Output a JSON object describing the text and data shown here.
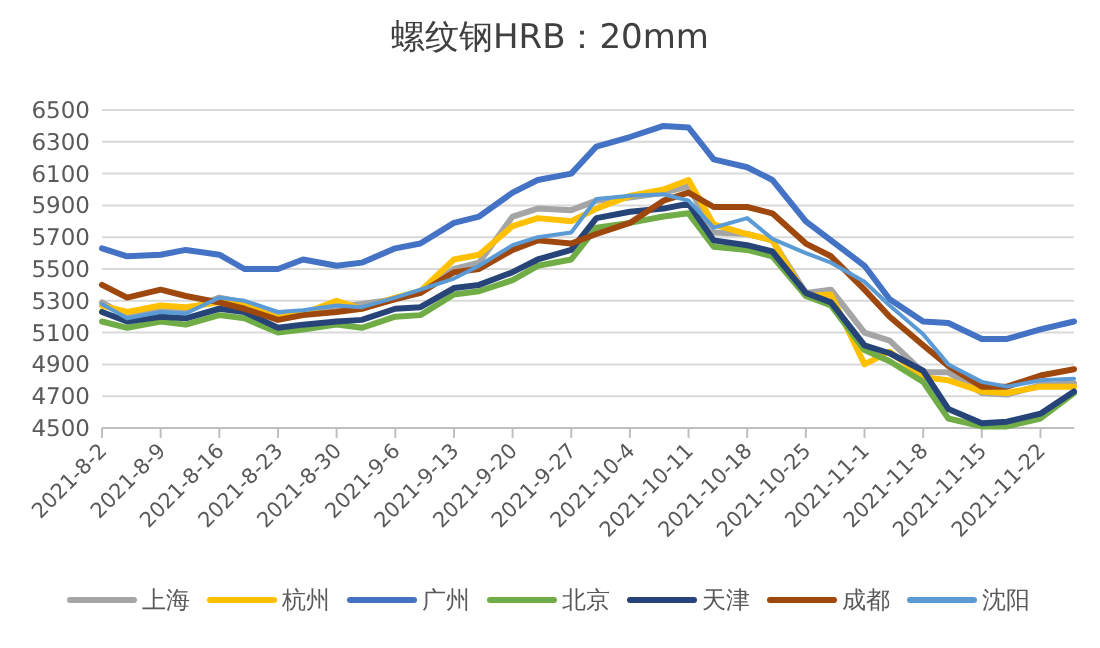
{
  "chart_data": {
    "type": "line",
    "title": "螺纹钢HRB：20mm",
    "x": [
      "2021-08-02",
      "2021-08-05",
      "2021-08-09",
      "2021-08-12",
      "2021-08-16",
      "2021-08-19",
      "2021-08-23",
      "2021-08-26",
      "2021-08-30",
      "2021-09-02",
      "2021-09-06",
      "2021-09-09",
      "2021-09-13",
      "2021-09-16",
      "2021-09-20",
      "2021-09-23",
      "2021-09-27",
      "2021-09-30",
      "2021-10-04",
      "2021-10-08",
      "2021-10-11",
      "2021-10-14",
      "2021-10-18",
      "2021-10-21",
      "2021-10-25",
      "2021-10-28",
      "2021-11-01",
      "2021-11-04",
      "2021-11-08",
      "2021-11-11",
      "2021-11-15",
      "2021-11-18",
      "2021-11-22",
      "2021-11-26"
    ],
    "series": [
      {
        "name": "上海",
        "color": "#a5a5a5",
        "values": [
          5290,
          5200,
          5250,
          5240,
          5320,
          5290,
          5200,
          5230,
          5260,
          5280,
          5310,
          5350,
          5500,
          5540,
          5830,
          5880,
          5870,
          5930,
          5950,
          5980,
          6020,
          5730,
          5720,
          5680,
          5350,
          5370,
          5100,
          5050,
          4850,
          4850,
          4720,
          4710,
          4770,
          4780
        ]
      },
      {
        "name": "杭州",
        "color": "#ffc000",
        "values": [
          5270,
          5230,
          5270,
          5260,
          5290,
          5270,
          5190,
          5220,
          5300,
          5250,
          5320,
          5360,
          5560,
          5590,
          5770,
          5820,
          5800,
          5880,
          5960,
          6000,
          6060,
          5780,
          5720,
          5680,
          5330,
          5340,
          4900,
          4980,
          4820,
          4800,
          4730,
          4720,
          4760,
          4760
        ]
      },
      {
        "name": "广州",
        "color": "#4472c4",
        "values": [
          5630,
          5580,
          5590,
          5620,
          5590,
          5500,
          5500,
          5560,
          5520,
          5540,
          5630,
          5660,
          5790,
          5830,
          5980,
          6060,
          6100,
          6270,
          6330,
          6400,
          6390,
          6190,
          6140,
          6060,
          5800,
          5680,
          5520,
          5310,
          5170,
          5160,
          5060,
          5060,
          5120,
          5170
        ]
      },
      {
        "name": "北京",
        "color": "#70ad47",
        "values": [
          5170,
          5130,
          5170,
          5150,
          5210,
          5190,
          5100,
          5120,
          5150,
          5130,
          5200,
          5210,
          5340,
          5360,
          5430,
          5520,
          5560,
          5760,
          5790,
          5830,
          5850,
          5640,
          5620,
          5580,
          5330,
          5270,
          4990,
          4920,
          4790,
          4560,
          4510,
          4510,
          4560,
          4720
        ]
      },
      {
        "name": "天津",
        "color": "#264478",
        "values": [
          5230,
          5170,
          5200,
          5190,
          5250,
          5230,
          5130,
          5150,
          5170,
          5180,
          5250,
          5260,
          5380,
          5400,
          5480,
          5560,
          5620,
          5820,
          5860,
          5880,
          5910,
          5680,
          5650,
          5610,
          5350,
          5290,
          5020,
          4970,
          4860,
          4620,
          4530,
          4540,
          4590,
          4730
        ]
      },
      {
        "name": "成都",
        "color": "#9e480e",
        "values": [
          5400,
          5320,
          5370,
          5330,
          5290,
          5250,
          5180,
          5210,
          5230,
          5250,
          5310,
          5350,
          5480,
          5500,
          5620,
          5680,
          5660,
          5720,
          5790,
          5930,
          5980,
          5890,
          5890,
          5850,
          5660,
          5580,
          5370,
          5200,
          5020,
          4890,
          4760,
          4760,
          4830,
          4870
        ]
      },
      {
        "name": "沈阳",
        "color": "#5b9bd5",
        "values": [
          5280,
          5190,
          5230,
          5220,
          5320,
          5300,
          5230,
          5240,
          5270,
          5260,
          5320,
          5370,
          5440,
          5520,
          5650,
          5700,
          5730,
          5940,
          5960,
          5970,
          5930,
          5760,
          5820,
          5690,
          5600,
          5540,
          5420,
          5270,
          5090,
          4900,
          4790,
          4760,
          4800,
          4810
        ]
      }
    ],
    "xlim": [
      "2021-08-02",
      "2021-11-26"
    ],
    "ylim": [
      4500,
      6500
    ],
    "xticks": [
      {
        "value": "2021-08-02",
        "label": "2021-8-2"
      },
      {
        "value": "2021-08-09",
        "label": "2021-8-9"
      },
      {
        "value": "2021-08-16",
        "label": "2021-8-16"
      },
      {
        "value": "2021-08-23",
        "label": "2021-8-23"
      },
      {
        "value": "2021-08-30",
        "label": "2021-8-30"
      },
      {
        "value": "2021-09-06",
        "label": "2021-9-6"
      },
      {
        "value": "2021-09-13",
        "label": "2021-9-13"
      },
      {
        "value": "2021-09-20",
        "label": "2021-9-20"
      },
      {
        "value": "2021-09-27",
        "label": "2021-9-27"
      },
      {
        "value": "2021-10-04",
        "label": "2021-10-4"
      },
      {
        "value": "2021-10-11",
        "label": "2021-10-11"
      },
      {
        "value": "2021-10-18",
        "label": "2021-10-18"
      },
      {
        "value": "2021-10-25",
        "label": "2021-10-25"
      },
      {
        "value": "2021-11-01",
        "label": "2021-11-1"
      },
      {
        "value": "2021-11-08",
        "label": "2021-11-8"
      },
      {
        "value": "2021-11-15",
        "label": "2021-11-15"
      },
      {
        "value": "2021-11-22",
        "label": "2021-11-22"
      }
    ],
    "yticks": [
      4500,
      4700,
      4900,
      5100,
      5300,
      5500,
      5700,
      5900,
      6100,
      6300,
      6500
    ],
    "grid": "y",
    "legend": "bottom"
  }
}
